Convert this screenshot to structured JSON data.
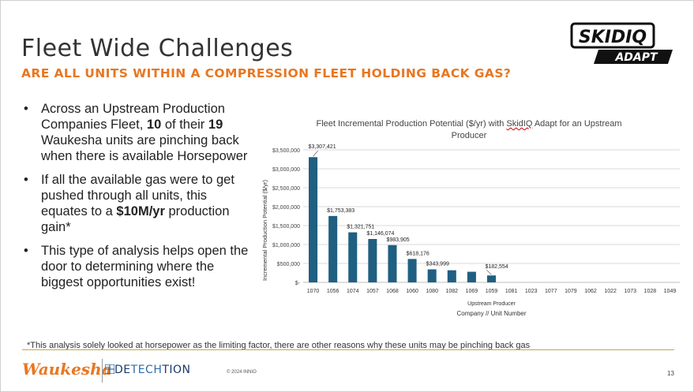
{
  "slide": {
    "title": "Fleet Wide Challenges",
    "subtitle": "ARE ALL UNITS WITHIN A COMPRESSION FLEET HOLDING BACK GAS?",
    "logo": {
      "line1": "SKIDIQ",
      "line2": "ADAPT"
    },
    "bullets": [
      {
        "a": "Across an Upstream Production Companies Fleet, ",
        "b": "10",
        "c": " of their ",
        "d": "19",
        "e": " Waukesha units are pinching back when there is available Horsepower"
      },
      {
        "a": "If all the available gas were to get pushed through all units, this equates to a ",
        "b": "$10M/yr",
        "c": " production gain*"
      },
      {
        "a": "This type of analysis helps open the door to determining where the biggest opportunities exist!"
      }
    ],
    "bullet_char": "•",
    "footnote": "*This analysis solely looked at horsepower as the limiting factor, there are other reasons why these units may be pinching back gas",
    "footer": {
      "waukesha": "Waukesha",
      "detech": "DE",
      "tech": "TECH",
      "tion": "TION",
      "copyright": "© 2024 INNIO",
      "page": "13"
    }
  },
  "chart_data": {
    "type": "bar",
    "title_pre": "Fleet Incremental Production Potential ($/yr) with ",
    "title_ul": "SkidIQ",
    "title_post": " Adapt for an Upstream Producer",
    "xlabel_top": "Upstream Producer",
    "xlabel": "Company // Unit Number",
    "ylabel": "Incremental Production Potential ($/yr)",
    "ylim": [
      0,
      3500000
    ],
    "ticks": [
      "$-",
      "$500,000",
      "$1,000,000",
      "$1,500,000",
      "$2,000,000",
      "$2,500,000",
      "$3,000,000",
      "$3,500,000"
    ],
    "grid": true,
    "bar_color": "#1F5F82",
    "categories": [
      "1070",
      "1056",
      "1074",
      "1057",
      "1068",
      "1060",
      "1080",
      "1082",
      "1069",
      "1059",
      "1081",
      "1023",
      "1077",
      "1079",
      "1062",
      "1022",
      "1073",
      "1028",
      "1049"
    ],
    "values": [
      3307421,
      1753383,
      1321751,
      1146074,
      983905,
      618176,
      343999,
      320000,
      280000,
      182554,
      0,
      0,
      0,
      0,
      0,
      0,
      0,
      0,
      0
    ],
    "labels": [
      "$3,307,421",
      "$1,753,383",
      "$1,321,751",
      "$1,146,074",
      "$983,905",
      "$618,176",
      "$343,999",
      "",
      "",
      "$182,554",
      "",
      "",
      "",
      "",
      "",
      "",
      "",
      "",
      ""
    ]
  }
}
